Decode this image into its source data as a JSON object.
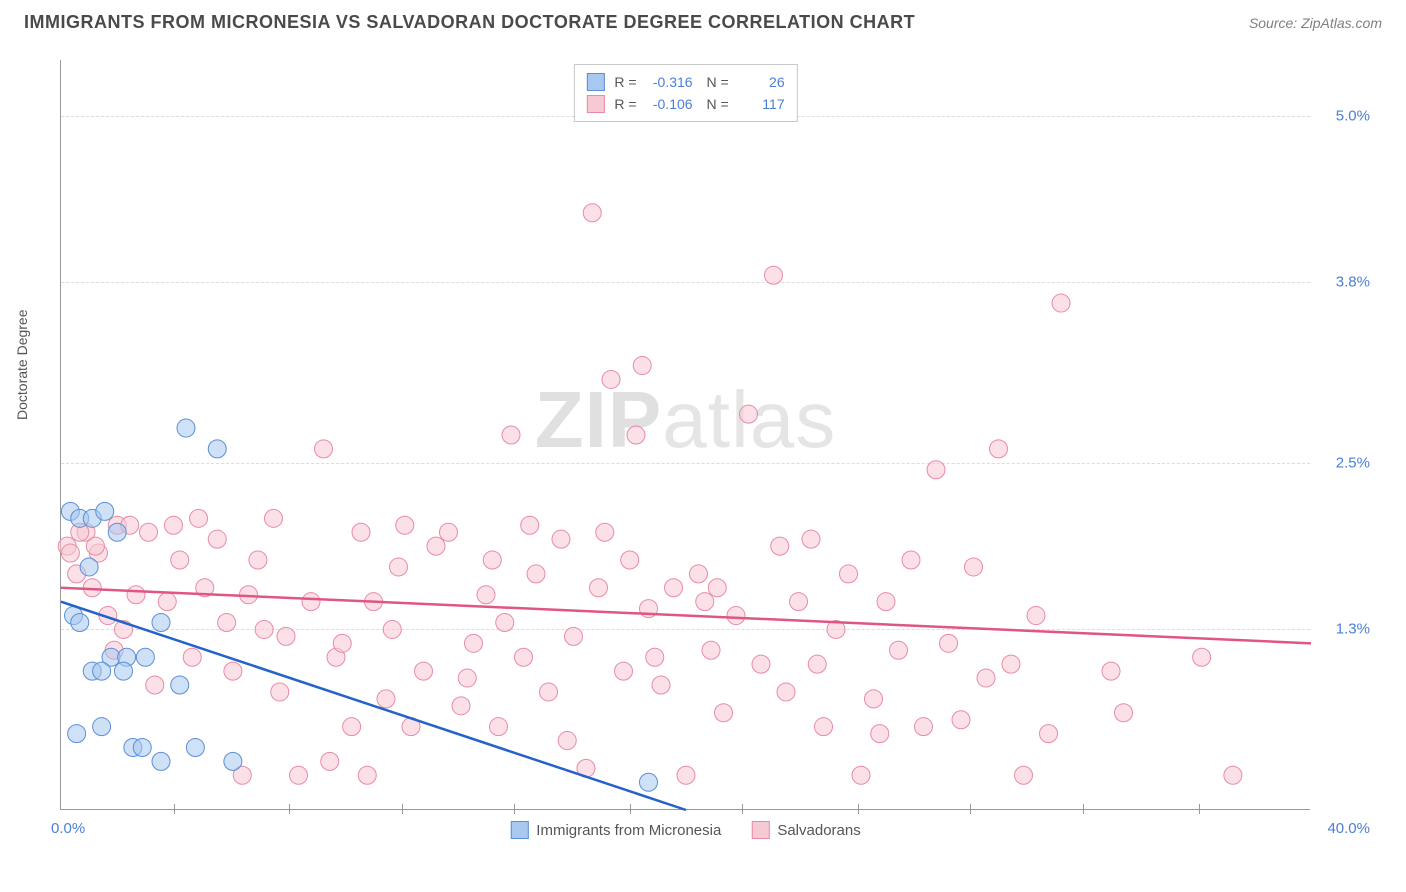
{
  "header": {
    "title": "IMMIGRANTS FROM MICRONESIA VS SALVADORAN DOCTORATE DEGREE CORRELATION CHART",
    "source": "Source: ZipAtlas.com"
  },
  "ylabel": "Doctorate Degree",
  "watermark_zip": "ZIP",
  "watermark_atlas": "atlas",
  "chart": {
    "type": "scatter",
    "xlim": [
      0,
      40
    ],
    "ylim": [
      0,
      5.4
    ],
    "yticks": [
      {
        "value": 1.3,
        "label": "1.3%"
      },
      {
        "value": 2.5,
        "label": "2.5%"
      },
      {
        "value": 3.8,
        "label": "3.8%"
      },
      {
        "value": 5.0,
        "label": "5.0%"
      }
    ],
    "xtick_left": "0.0%",
    "xtick_right": "40.0%",
    "xtick_positions": [
      3.6,
      7.3,
      10.9,
      14.5,
      18.2,
      21.8,
      25.5,
      29.1,
      32.7,
      36.4
    ],
    "background_color": "#ffffff",
    "grid_color": "#dcdcdc",
    "series": [
      {
        "name": "Immigrants from Micronesia",
        "color_fill": "#a8c8f0",
        "color_stroke": "#5b8fd6",
        "trend_color": "#2563c9",
        "trend": {
          "x1": 0,
          "y1": 1.5,
          "x2": 20,
          "y2": 0.0
        },
        "marker_radius": 9,
        "R": "-0.316",
        "N": "26",
        "points": [
          [
            0.3,
            2.15
          ],
          [
            0.6,
            2.1
          ],
          [
            1.0,
            2.1
          ],
          [
            1.4,
            2.15
          ],
          [
            0.4,
            1.4
          ],
          [
            0.6,
            1.35
          ],
          [
            1.0,
            1.0
          ],
          [
            1.6,
            1.1
          ],
          [
            2.1,
            1.1
          ],
          [
            2.7,
            1.1
          ],
          [
            0.5,
            0.55
          ],
          [
            1.3,
            1.0
          ],
          [
            2.0,
            1.0
          ],
          [
            2.3,
            0.45
          ],
          [
            2.6,
            0.45
          ],
          [
            3.2,
            0.35
          ],
          [
            4.3,
            0.45
          ],
          [
            5.5,
            0.35
          ],
          [
            4.0,
            2.75
          ],
          [
            3.2,
            1.35
          ],
          [
            1.8,
            2.0
          ],
          [
            0.9,
            1.75
          ],
          [
            1.3,
            0.6
          ],
          [
            3.8,
            0.9
          ],
          [
            5.0,
            2.6
          ],
          [
            18.8,
            0.2
          ]
        ]
      },
      {
        "name": "Salvadorans",
        "color_fill": "#f7c9d4",
        "color_stroke": "#e88ba3",
        "trend_color": "#e05582",
        "trend": {
          "x1": 0,
          "y1": 1.6,
          "x2": 40,
          "y2": 1.2
        },
        "marker_radius": 9,
        "R": "-0.106",
        "N": "117",
        "points": [
          [
            0.2,
            1.9
          ],
          [
            0.8,
            2.0
          ],
          [
            1.2,
            1.85
          ],
          [
            1.8,
            2.05
          ],
          [
            2.4,
            1.55
          ],
          [
            2.8,
            2.0
          ],
          [
            3.4,
            1.5
          ],
          [
            3.8,
            1.8
          ],
          [
            4.2,
            1.1
          ],
          [
            4.6,
            1.6
          ],
          [
            5.0,
            1.95
          ],
          [
            5.5,
            1.0
          ],
          [
            6.0,
            1.55
          ],
          [
            6.3,
            1.8
          ],
          [
            6.8,
            2.1
          ],
          [
            7.2,
            1.25
          ],
          [
            7.6,
            0.25
          ],
          [
            8.0,
            1.5
          ],
          [
            8.4,
            2.6
          ],
          [
            8.8,
            1.1
          ],
          [
            9.3,
            0.6
          ],
          [
            9.6,
            2.0
          ],
          [
            10.0,
            1.5
          ],
          [
            10.4,
            0.8
          ],
          [
            10.8,
            1.75
          ],
          [
            11.2,
            0.6
          ],
          [
            11.6,
            1.0
          ],
          [
            12.0,
            1.9
          ],
          [
            12.4,
            2.0
          ],
          [
            12.8,
            0.75
          ],
          [
            13.2,
            1.2
          ],
          [
            13.6,
            1.55
          ],
          [
            14.0,
            0.6
          ],
          [
            14.4,
            2.7
          ],
          [
            14.8,
            1.1
          ],
          [
            15.2,
            1.7
          ],
          [
            15.6,
            0.85
          ],
          [
            16.0,
            1.95
          ],
          [
            16.4,
            1.25
          ],
          [
            16.8,
            0.3
          ],
          [
            17.2,
            1.6
          ],
          [
            17.0,
            4.3
          ],
          [
            17.6,
            3.1
          ],
          [
            18.0,
            1.0
          ],
          [
            18.4,
            2.7
          ],
          [
            18.8,
            1.45
          ],
          [
            18.6,
            3.2
          ],
          [
            19.2,
            0.9
          ],
          [
            19.6,
            1.6
          ],
          [
            20.0,
            0.25
          ],
          [
            20.4,
            1.7
          ],
          [
            20.8,
            1.15
          ],
          [
            21.2,
            0.7
          ],
          [
            21.6,
            1.4
          ],
          [
            22.0,
            2.85
          ],
          [
            22.4,
            1.05
          ],
          [
            23.2,
            0.85
          ],
          [
            23.6,
            1.5
          ],
          [
            24.0,
            1.95
          ],
          [
            24.4,
            0.6
          ],
          [
            24.8,
            1.3
          ],
          [
            25.2,
            1.7
          ],
          [
            25.6,
            0.25
          ],
          [
            26.0,
            0.8
          ],
          [
            26.4,
            1.5
          ],
          [
            26.8,
            1.15
          ],
          [
            27.2,
            1.8
          ],
          [
            27.6,
            0.6
          ],
          [
            28.0,
            2.45
          ],
          [
            28.8,
            0.65
          ],
          [
            29.2,
            1.75
          ],
          [
            29.6,
            0.95
          ],
          [
            30.0,
            2.6
          ],
          [
            30.4,
            1.05
          ],
          [
            30.8,
            0.25
          ],
          [
            31.2,
            1.4
          ],
          [
            32.0,
            3.65
          ],
          [
            33.6,
            1.0
          ],
          [
            34.0,
            0.7
          ],
          [
            36.5,
            1.1
          ],
          [
            37.5,
            0.25
          ],
          [
            22.8,
            3.85
          ],
          [
            2.0,
            1.3
          ],
          [
            3.0,
            0.9
          ],
          [
            5.8,
            0.25
          ],
          [
            7.0,
            0.85
          ],
          [
            9.0,
            1.2
          ],
          [
            11.0,
            2.05
          ],
          [
            14.2,
            1.35
          ],
          [
            16.2,
            0.5
          ],
          [
            19.0,
            1.1
          ],
          [
            21.0,
            1.6
          ],
          [
            23.0,
            1.9
          ],
          [
            0.3,
            1.85
          ],
          [
            0.5,
            1.7
          ],
          [
            1.0,
            1.6
          ],
          [
            1.5,
            1.4
          ],
          [
            2.2,
            2.05
          ],
          [
            3.6,
            2.05
          ],
          [
            4.4,
            2.1
          ],
          [
            6.5,
            1.3
          ],
          [
            8.6,
            0.35
          ],
          [
            10.6,
            1.3
          ],
          [
            13.0,
            0.95
          ],
          [
            15.0,
            2.05
          ],
          [
            17.4,
            2.0
          ],
          [
            18.2,
            1.8
          ],
          [
            20.6,
            1.5
          ],
          [
            24.2,
            1.05
          ],
          [
            28.4,
            1.2
          ],
          [
            31.6,
            0.55
          ],
          [
            1.7,
            1.15
          ],
          [
            5.3,
            1.35
          ],
          [
            9.8,
            0.25
          ],
          [
            13.8,
            1.8
          ],
          [
            26.2,
            0.55
          ],
          [
            0.6,
            2.0
          ],
          [
            1.1,
            1.9
          ]
        ]
      }
    ]
  },
  "legend_bottom": [
    {
      "label": "Immigrants from Micronesia",
      "fill": "#a8c8f0",
      "stroke": "#5b8fd6"
    },
    {
      "label": "Salvadorans",
      "fill": "#f7c9d4",
      "stroke": "#e88ba3"
    }
  ]
}
